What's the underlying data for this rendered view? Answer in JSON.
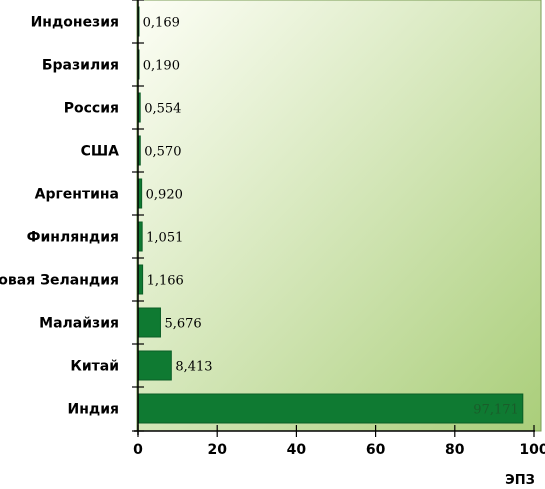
{
  "chart_data": {
    "type": "bar",
    "orientation": "horizontal",
    "categories": [
      "Индонезия",
      "Бразилия",
      "Россия",
      "США",
      "Аргентина",
      "Финляндия",
      "Новая Зеландия",
      "Малайзия",
      "Китай",
      "Индия"
    ],
    "values": [
      0.169,
      0.19,
      0.554,
      0.57,
      0.92,
      1.051,
      1.166,
      5.676,
      8.413,
      97.171
    ],
    "value_labels": [
      "0,169",
      "0,190",
      "0,554",
      "0,570",
      "0,920",
      "1,051",
      "1,166",
      "5,676",
      "8,413",
      "97,171"
    ],
    "xlim": [
      0,
      100
    ],
    "xticks": [
      0,
      20,
      40,
      60,
      80,
      100
    ],
    "xtick_labels": [
      "0",
      "20",
      "40",
      "60",
      "80",
      "100"
    ],
    "xlabel": "ЭПЗ",
    "grid": false,
    "colors": {
      "bar": "#0f7a32",
      "bar_edge": "#0b5e26",
      "background_light": "#fdfef6",
      "background_dark": "#aace7a",
      "border": "#7a9c55"
    }
  }
}
